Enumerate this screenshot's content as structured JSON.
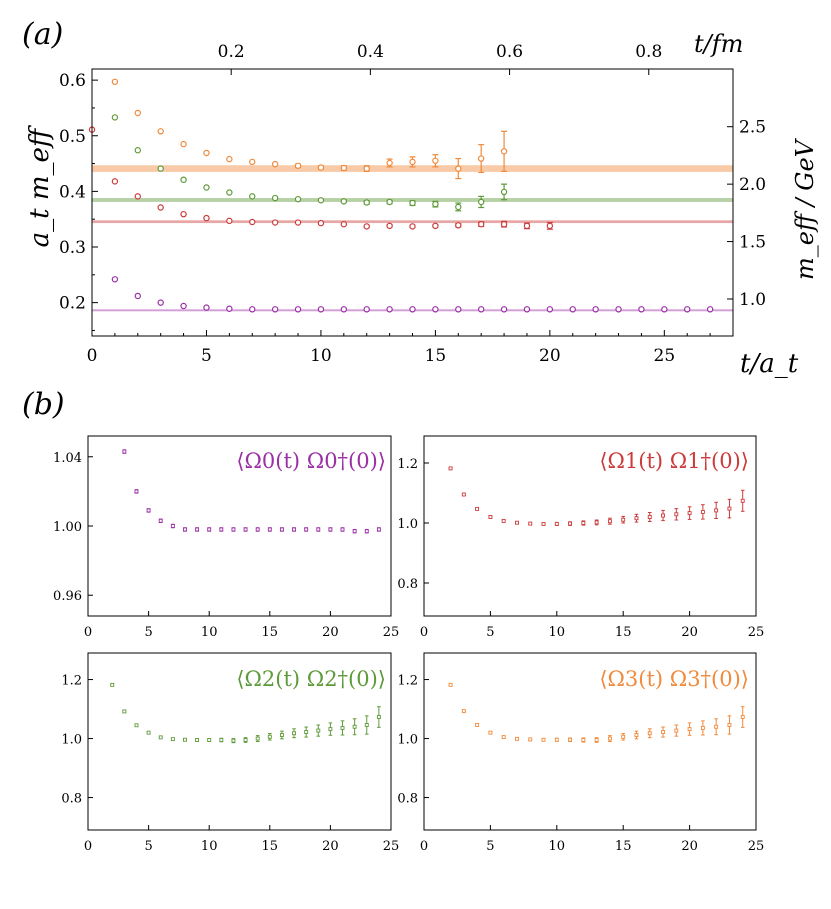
{
  "panel_labels": {
    "a": "(a)",
    "b": "(b)"
  },
  "chart_data": [
    {
      "type": "scatter",
      "panel": "(a)",
      "xlabel": "t/a_t",
      "ylabel": "a_t m_eff",
      "x2label": "t/fm",
      "y2label": "m_eff / GeV",
      "xlim": [
        0,
        28
      ],
      "ylim": [
        0.14,
        0.62
      ],
      "xticks": [
        "0",
        "5",
        "10",
        "15",
        "20",
        "25"
      ],
      "yticks": [
        "0.2",
        "0.3",
        "0.4",
        "0.5",
        "0.6"
      ],
      "x2ticks": [
        "0.2",
        "0.4",
        "0.6",
        "0.8"
      ],
      "y2ticks": [
        "1.0",
        "1.5",
        "2.0",
        "2.5"
      ],
      "grid": false,
      "series": [
        {
          "color": "#f08a3c",
          "band": [
            0.435,
            0.447
          ],
          "points": [
            {
              "x": 1,
              "y": 0.597,
              "e": 0
            },
            {
              "x": 2,
              "y": 0.541,
              "e": 0
            },
            {
              "x": 3,
              "y": 0.508,
              "e": 0
            },
            {
              "x": 4,
              "y": 0.485,
              "e": 0
            },
            {
              "x": 5,
              "y": 0.469,
              "e": 0
            },
            {
              "x": 6,
              "y": 0.458,
              "e": 0
            },
            {
              "x": 7,
              "y": 0.453,
              "e": 0
            },
            {
              "x": 8,
              "y": 0.449,
              "e": 0
            },
            {
              "x": 9,
              "y": 0.446,
              "e": 0.003
            },
            {
              "x": 10,
              "y": 0.443,
              "e": 0.003
            },
            {
              "x": 11,
              "y": 0.442,
              "e": 0.004
            },
            {
              "x": 12,
              "y": 0.441,
              "e": 0.005
            },
            {
              "x": 13,
              "y": 0.451,
              "e": 0.007
            },
            {
              "x": 14,
              "y": 0.453,
              "e": 0.009
            },
            {
              "x": 15,
              "y": 0.455,
              "e": 0.011
            },
            {
              "x": 16,
              "y": 0.441,
              "e": 0.018
            },
            {
              "x": 17,
              "y": 0.459,
              "e": 0.025
            },
            {
              "x": 18,
              "y": 0.472,
              "e": 0.036
            }
          ]
        },
        {
          "color": "#5f9a3a",
          "band": [
            0.381,
            0.388
          ],
          "points": [
            {
              "x": 1,
              "y": 0.533,
              "e": 0
            },
            {
              "x": 2,
              "y": 0.474,
              "e": 0
            },
            {
              "x": 3,
              "y": 0.441,
              "e": 0
            },
            {
              "x": 4,
              "y": 0.421,
              "e": 0
            },
            {
              "x": 5,
              "y": 0.407,
              "e": 0
            },
            {
              "x": 6,
              "y": 0.398,
              "e": 0
            },
            {
              "x": 7,
              "y": 0.391,
              "e": 0
            },
            {
              "x": 8,
              "y": 0.388,
              "e": 0
            },
            {
              "x": 9,
              "y": 0.386,
              "e": 0
            },
            {
              "x": 10,
              "y": 0.384,
              "e": 0
            },
            {
              "x": 11,
              "y": 0.382,
              "e": 0.002
            },
            {
              "x": 12,
              "y": 0.38,
              "e": 0.003
            },
            {
              "x": 13,
              "y": 0.381,
              "e": 0.003
            },
            {
              "x": 14,
              "y": 0.379,
              "e": 0.004
            },
            {
              "x": 15,
              "y": 0.377,
              "e": 0.005
            },
            {
              "x": 16,
              "y": 0.372,
              "e": 0.007
            },
            {
              "x": 17,
              "y": 0.381,
              "e": 0.01
            },
            {
              "x": 18,
              "y": 0.399,
              "e": 0.014
            }
          ]
        },
        {
          "color": "#cc3b3b",
          "band": [
            0.343,
            0.348
          ],
          "points": [
            {
              "x": 0,
              "y": 0.511,
              "e": 0
            },
            {
              "x": 1,
              "y": 0.418,
              "e": 0
            },
            {
              "x": 2,
              "y": 0.391,
              "e": 0
            },
            {
              "x": 3,
              "y": 0.371,
              "e": 0
            },
            {
              "x": 4,
              "y": 0.359,
              "e": 0
            },
            {
              "x": 5,
              "y": 0.352,
              "e": 0
            },
            {
              "x": 6,
              "y": 0.347,
              "e": 0
            },
            {
              "x": 7,
              "y": 0.345,
              "e": 0
            },
            {
              "x": 8,
              "y": 0.344,
              "e": 0
            },
            {
              "x": 9,
              "y": 0.344,
              "e": 0
            },
            {
              "x": 10,
              "y": 0.343,
              "e": 0
            },
            {
              "x": 11,
              "y": 0.341,
              "e": 0
            },
            {
              "x": 12,
              "y": 0.337,
              "e": 0.002
            },
            {
              "x": 13,
              "y": 0.338,
              "e": 0.002
            },
            {
              "x": 14,
              "y": 0.337,
              "e": 0.002
            },
            {
              "x": 15,
              "y": 0.338,
              "e": 0.002
            },
            {
              "x": 16,
              "y": 0.339,
              "e": 0.003
            },
            {
              "x": 17,
              "y": 0.341,
              "e": 0.004
            },
            {
              "x": 18,
              "y": 0.341,
              "e": 0.005
            },
            {
              "x": 19,
              "y": 0.338,
              "e": 0.005
            },
            {
              "x": 20,
              "y": 0.338,
              "e": 0.006
            }
          ]
        },
        {
          "color": "#9b2fa6",
          "band": [
            0.186,
            0.188
          ],
          "points": [
            {
              "x": 1,
              "y": 0.242,
              "e": 0
            },
            {
              "x": 2,
              "y": 0.212,
              "e": 0
            },
            {
              "x": 3,
              "y": 0.2,
              "e": 0
            },
            {
              "x": 4,
              "y": 0.194,
              "e": 0
            },
            {
              "x": 5,
              "y": 0.191,
              "e": 0
            },
            {
              "x": 6,
              "y": 0.189,
              "e": 0
            },
            {
              "x": 7,
              "y": 0.188,
              "e": 0
            },
            {
              "x": 8,
              "y": 0.188,
              "e": 0
            },
            {
              "x": 9,
              "y": 0.188,
              "e": 0
            },
            {
              "x": 10,
              "y": 0.188,
              "e": 0
            },
            {
              "x": 11,
              "y": 0.188,
              "e": 0
            },
            {
              "x": 12,
              "y": 0.188,
              "e": 0
            },
            {
              "x": 13,
              "y": 0.188,
              "e": 0
            },
            {
              "x": 14,
              "y": 0.188,
              "e": 0
            },
            {
              "x": 15,
              "y": 0.188,
              "e": 0
            },
            {
              "x": 16,
              "y": 0.188,
              "e": 0
            },
            {
              "x": 17,
              "y": 0.188,
              "e": 0
            },
            {
              "x": 18,
              "y": 0.188,
              "e": 0
            },
            {
              "x": 19,
              "y": 0.188,
              "e": 0
            },
            {
              "x": 20,
              "y": 0.188,
              "e": 0
            },
            {
              "x": 21,
              "y": 0.188,
              "e": 0
            },
            {
              "x": 22,
              "y": 0.188,
              "e": 0
            },
            {
              "x": 23,
              "y": 0.188,
              "e": 0
            },
            {
              "x": 24,
              "y": 0.188,
              "e": 0
            },
            {
              "x": 25,
              "y": 0.188,
              "e": 0
            },
            {
              "x": 26,
              "y": 0.188,
              "e": 0
            },
            {
              "x": 27,
              "y": 0.188,
              "e": 0
            }
          ]
        }
      ]
    },
    {
      "type": "scatter",
      "panel": "(b)",
      "title": "⟨Ω0(t) Ω0†(0)⟩",
      "color": "#9b2fa6",
      "xlim": [
        0,
        25
      ],
      "ylim": [
        0.948,
        1.052
      ],
      "xticks": [
        "0",
        "5",
        "10",
        "15",
        "20",
        "25"
      ],
      "yticks": [
        "0.96",
        "1.00",
        "1.04"
      ],
      "points": [
        {
          "x": 3,
          "y": 1.043,
          "e": 0.001
        },
        {
          "x": 4,
          "y": 1.02,
          "e": 0.001
        },
        {
          "x": 5,
          "y": 1.009,
          "e": 0.001
        },
        {
          "x": 6,
          "y": 1.003,
          "e": 0.001
        },
        {
          "x": 7,
          "y": 1.0,
          "e": 0.001
        },
        {
          "x": 8,
          "y": 0.998,
          "e": 0.001
        },
        {
          "x": 9,
          "y": 0.998,
          "e": 0.001
        },
        {
          "x": 10,
          "y": 0.998,
          "e": 0.001
        },
        {
          "x": 11,
          "y": 0.998,
          "e": 0.001
        },
        {
          "x": 12,
          "y": 0.998,
          "e": 0.001
        },
        {
          "x": 13,
          "y": 0.998,
          "e": 0.001
        },
        {
          "x": 14,
          "y": 0.998,
          "e": 0.001
        },
        {
          "x": 15,
          "y": 0.998,
          "e": 0.001
        },
        {
          "x": 16,
          "y": 0.998,
          "e": 0.001
        },
        {
          "x": 17,
          "y": 0.998,
          "e": 0.001
        },
        {
          "x": 18,
          "y": 0.998,
          "e": 0.001
        },
        {
          "x": 19,
          "y": 0.998,
          "e": 0.001
        },
        {
          "x": 20,
          "y": 0.998,
          "e": 0.001
        },
        {
          "x": 21,
          "y": 0.998,
          "e": 0.001
        },
        {
          "x": 22,
          "y": 0.997,
          "e": 0.001
        },
        {
          "x": 23,
          "y": 0.997,
          "e": 0.001
        },
        {
          "x": 24,
          "y": 0.998,
          "e": 0.001
        }
      ]
    },
    {
      "type": "scatter",
      "panel": "(b)",
      "title": "⟨Ω1(t) Ω1†(0)⟩",
      "color": "#cc3b3b",
      "xlim": [
        0,
        25
      ],
      "ylim": [
        0.69,
        1.29
      ],
      "xticks": [
        "0",
        "5",
        "10",
        "15",
        "20",
        "25"
      ],
      "yticks": [
        "0.8",
        "1.0",
        "1.2"
      ],
      "points": [
        {
          "x": 2,
          "y": 1.182,
          "e": 0.002
        },
        {
          "x": 3,
          "y": 1.095,
          "e": 0.002
        },
        {
          "x": 4,
          "y": 1.047,
          "e": 0.002
        },
        {
          "x": 5,
          "y": 1.02,
          "e": 0.002
        },
        {
          "x": 6,
          "y": 1.007,
          "e": 0.003
        },
        {
          "x": 7,
          "y": 1.001,
          "e": 0.003
        },
        {
          "x": 8,
          "y": 0.998,
          "e": 0.004
        },
        {
          "x": 9,
          "y": 0.997,
          "e": 0.004
        },
        {
          "x": 10,
          "y": 0.997,
          "e": 0.005
        },
        {
          "x": 11,
          "y": 0.998,
          "e": 0.006
        },
        {
          "x": 12,
          "y": 1.0,
          "e": 0.007
        },
        {
          "x": 13,
          "y": 1.002,
          "e": 0.008
        },
        {
          "x": 14,
          "y": 1.006,
          "e": 0.01
        },
        {
          "x": 15,
          "y": 1.011,
          "e": 0.011
        },
        {
          "x": 16,
          "y": 1.016,
          "e": 0.013
        },
        {
          "x": 17,
          "y": 1.02,
          "e": 0.015
        },
        {
          "x": 18,
          "y": 1.025,
          "e": 0.017
        },
        {
          "x": 19,
          "y": 1.029,
          "e": 0.019
        },
        {
          "x": 20,
          "y": 1.033,
          "e": 0.021
        },
        {
          "x": 21,
          "y": 1.037,
          "e": 0.024
        },
        {
          "x": 22,
          "y": 1.042,
          "e": 0.027
        },
        {
          "x": 23,
          "y": 1.048,
          "e": 0.031
        },
        {
          "x": 24,
          "y": 1.074,
          "e": 0.035
        }
      ]
    },
    {
      "type": "scatter",
      "panel": "(b)",
      "title": "⟨Ω2(t) Ω2†(0)⟩",
      "color": "#5f9a3a",
      "xlim": [
        0,
        25
      ],
      "ylim": [
        0.69,
        1.29
      ],
      "xticks": [
        "0",
        "5",
        "10",
        "15",
        "20",
        "25"
      ],
      "yticks": [
        "0.8",
        "1.0",
        "1.2"
      ],
      "points": [
        {
          "x": 2,
          "y": 1.182,
          "e": 0.002
        },
        {
          "x": 3,
          "y": 1.092,
          "e": 0.002
        },
        {
          "x": 4,
          "y": 1.045,
          "e": 0.002
        },
        {
          "x": 5,
          "y": 1.02,
          "e": 0.002
        },
        {
          "x": 6,
          "y": 1.004,
          "e": 0.003
        },
        {
          "x": 7,
          "y": 0.998,
          "e": 0.003
        },
        {
          "x": 8,
          "y": 0.996,
          "e": 0.004
        },
        {
          "x": 9,
          "y": 0.995,
          "e": 0.004
        },
        {
          "x": 10,
          "y": 0.995,
          "e": 0.005
        },
        {
          "x": 11,
          "y": 0.995,
          "e": 0.006
        },
        {
          "x": 12,
          "y": 0.993,
          "e": 0.007
        },
        {
          "x": 13,
          "y": 0.995,
          "e": 0.008
        },
        {
          "x": 14,
          "y": 1.0,
          "e": 0.01
        },
        {
          "x": 15,
          "y": 1.006,
          "e": 0.011
        },
        {
          "x": 16,
          "y": 1.012,
          "e": 0.013
        },
        {
          "x": 17,
          "y": 1.018,
          "e": 0.015
        },
        {
          "x": 18,
          "y": 1.022,
          "e": 0.017
        },
        {
          "x": 19,
          "y": 1.027,
          "e": 0.019
        },
        {
          "x": 20,
          "y": 1.032,
          "e": 0.021
        },
        {
          "x": 21,
          "y": 1.036,
          "e": 0.024
        },
        {
          "x": 22,
          "y": 1.04,
          "e": 0.027
        },
        {
          "x": 23,
          "y": 1.046,
          "e": 0.031
        },
        {
          "x": 24,
          "y": 1.073,
          "e": 0.035
        }
      ]
    },
    {
      "type": "scatter",
      "panel": "(b)",
      "title": "⟨Ω3(t) Ω3†(0)⟩",
      "color": "#f08a3c",
      "xlim": [
        0,
        25
      ],
      "ylim": [
        0.69,
        1.29
      ],
      "xticks": [
        "0",
        "5",
        "10",
        "15",
        "20",
        "25"
      ],
      "yticks": [
        "0.8",
        "1.0",
        "1.2"
      ],
      "points": [
        {
          "x": 2,
          "y": 1.182,
          "e": 0.002
        },
        {
          "x": 3,
          "y": 1.093,
          "e": 0.002
        },
        {
          "x": 4,
          "y": 1.046,
          "e": 0.002
        },
        {
          "x": 5,
          "y": 1.02,
          "e": 0.002
        },
        {
          "x": 6,
          "y": 1.005,
          "e": 0.003
        },
        {
          "x": 7,
          "y": 0.999,
          "e": 0.003
        },
        {
          "x": 8,
          "y": 0.997,
          "e": 0.004
        },
        {
          "x": 9,
          "y": 0.996,
          "e": 0.004
        },
        {
          "x": 10,
          "y": 0.996,
          "e": 0.005
        },
        {
          "x": 11,
          "y": 0.996,
          "e": 0.006
        },
        {
          "x": 12,
          "y": 0.995,
          "e": 0.007
        },
        {
          "x": 13,
          "y": 0.995,
          "e": 0.008
        },
        {
          "x": 14,
          "y": 1.0,
          "e": 0.01
        },
        {
          "x": 15,
          "y": 1.006,
          "e": 0.011
        },
        {
          "x": 16,
          "y": 1.012,
          "e": 0.013
        },
        {
          "x": 17,
          "y": 1.018,
          "e": 0.015
        },
        {
          "x": 18,
          "y": 1.022,
          "e": 0.017
        },
        {
          "x": 19,
          "y": 1.027,
          "e": 0.019
        },
        {
          "x": 20,
          "y": 1.032,
          "e": 0.021
        },
        {
          "x": 21,
          "y": 1.036,
          "e": 0.024
        },
        {
          "x": 22,
          "y": 1.04,
          "e": 0.027
        },
        {
          "x": 23,
          "y": 1.046,
          "e": 0.031
        },
        {
          "x": 24,
          "y": 1.073,
          "e": 0.035
        }
      ]
    }
  ]
}
